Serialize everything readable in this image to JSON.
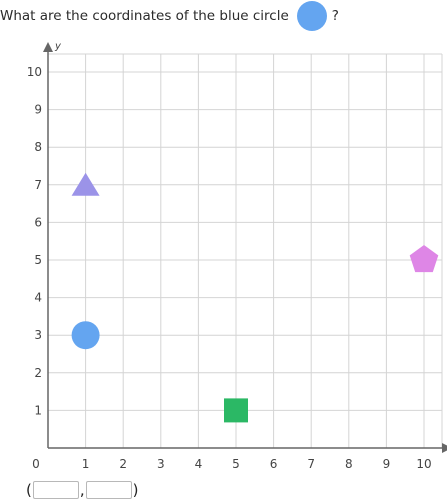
{
  "question": {
    "text_before": "What are the coordinates of the blue circle",
    "text_after": "?",
    "target_color": "#64a5f0"
  },
  "chart_data": {
    "type": "scatter",
    "xlabel": "x",
    "ylabel": "y",
    "xlim": [
      0,
      10
    ],
    "ylim": [
      0,
      10
    ],
    "grid": true,
    "x_ticks": [
      "0",
      "1",
      "2",
      "3",
      "4",
      "5",
      "6",
      "7",
      "8",
      "9",
      "10"
    ],
    "y_ticks": [
      "1",
      "2",
      "3",
      "4",
      "5",
      "6",
      "7",
      "8",
      "9",
      "10"
    ],
    "points": [
      {
        "shape": "triangle",
        "x": 1,
        "y": 7,
        "color": "#9b93e8"
      },
      {
        "shape": "circle",
        "x": 1,
        "y": 3,
        "color": "#64a5f0"
      },
      {
        "shape": "square",
        "x": 5,
        "y": 1,
        "color": "#2bb865"
      },
      {
        "shape": "pentagon",
        "x": 10,
        "y": 5,
        "color": "#de86e6"
      }
    ]
  },
  "answer": {
    "open_paren": "(",
    "comma": ",",
    "close_paren": ")",
    "x_value": "",
    "y_value": ""
  }
}
